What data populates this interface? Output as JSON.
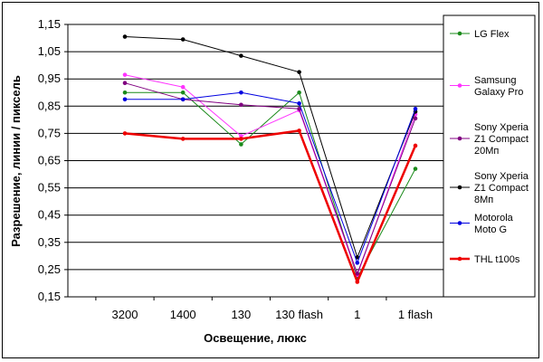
{
  "chart_data": {
    "type": "line",
    "title": "",
    "xlabel": "Освещение, люкс",
    "ylabel": "Разрешение, линии / пиксель",
    "categories": [
      "3200",
      "1400",
      "130",
      "130 flash",
      "1",
      "1 flash"
    ],
    "ylim": [
      0.15,
      1.15
    ],
    "yticks": [
      "0,15",
      "0,25",
      "0,35",
      "0,45",
      "0,55",
      "0,65",
      "0,75",
      "0,85",
      "0,95",
      "1,05",
      "1,15"
    ],
    "grid": true,
    "legend_position": "right",
    "series": [
      {
        "name_lines": [
          "LG Flex"
        ],
        "color": "#1a8a1a",
        "values": [
          0.9,
          0.9,
          0.71,
          0.9,
          0.22,
          0.62
        ],
        "width": 1
      },
      {
        "name_lines": [
          "Samsung",
          "Galaxy Pro"
        ],
        "color": "#ff33ff",
        "values": [
          0.965,
          0.92,
          0.74,
          0.835,
          0.23,
          0.82
        ],
        "width": 1
      },
      {
        "name_lines": [
          "Sony Xperia",
          "Z1 Compact",
          "20Мп"
        ],
        "color": "#800080",
        "values": [
          0.935,
          0.875,
          0.855,
          0.84,
          0.235,
          0.805
        ],
        "width": 1
      },
      {
        "name_lines": [
          "Sony Xperia",
          "Z1 Compact",
          "8Мп"
        ],
        "color": "#000000",
        "values": [
          1.105,
          1.095,
          1.035,
          0.975,
          0.295,
          0.83
        ],
        "width": 1
      },
      {
        "name_lines": [
          "Motorola",
          "Moto G"
        ],
        "color": "#0000e0",
        "values": [
          0.875,
          0.875,
          0.9,
          0.86,
          0.275,
          0.84
        ],
        "width": 1
      },
      {
        "name_lines": [
          "THL t100s"
        ],
        "color": "#ee0000",
        "values": [
          0.75,
          0.73,
          0.73,
          0.76,
          0.205,
          0.705
        ],
        "width": 2.5
      }
    ]
  }
}
